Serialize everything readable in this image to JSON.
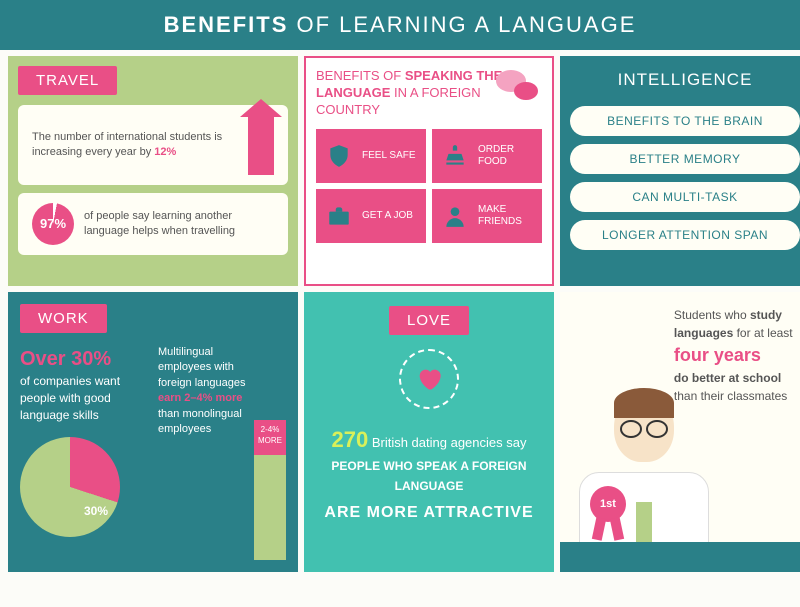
{
  "header": {
    "prefix": "BENEFITS",
    "suffix": " OF LEARNING A LANGUAGE"
  },
  "colors": {
    "pink": "#e94f86",
    "teal": "#2a8088",
    "green": "#b5d088",
    "mint": "#42c1b0",
    "cream": "#fffef5",
    "lime": "#d9f05a"
  },
  "travel": {
    "tag": "TRAVEL",
    "card1": {
      "text": "The number of international students is increasing every year by ",
      "stat": "12%"
    },
    "card2": {
      "percent": "97%",
      "text": "of people say learning another language helps when travelling"
    }
  },
  "benefits": {
    "title_pre": "BENEFITS OF ",
    "title_bold": "SPEAKING THE LANGUAGE",
    "title_post": " IN A FOREIGN COUNTRY",
    "items": [
      {
        "icon": "shield",
        "label": "FEEL SAFE"
      },
      {
        "icon": "food",
        "label": "ORDER FOOD"
      },
      {
        "icon": "briefcase",
        "label": "GET A JOB"
      },
      {
        "icon": "person",
        "label": "MAKE FRIENDS"
      }
    ]
  },
  "intel": {
    "tag": "INTELLIGENCE",
    "pills": [
      "BENEFITS TO THE BRAIN",
      "BETTER MEMORY",
      "CAN MULTI-TASK",
      "LONGER ATTENTION SPAN"
    ]
  },
  "work": {
    "tag": "WORK",
    "left": {
      "big": "Over 30%",
      "text": "of companies want people with good language skills",
      "pie_label": "30%",
      "pie_pct": 30
    },
    "right": {
      "text1": "Multilingual employees with foreign languages ",
      "stat": "earn 2–4% more",
      "text2": " than monolingual employees",
      "bar_label": "2-4% MORE"
    }
  },
  "love": {
    "tag": "LOVE",
    "n": "270",
    "line1": " British dating agencies say",
    "line2": "PEOPLE WHO SPEAK A FOREIGN LANGUAGE",
    "big": "ARE MORE ATTRACTIVE"
  },
  "student": {
    "t1": "Students who ",
    "b1": "study languages",
    "t2": " for at least",
    "fy": "four years",
    "t3": "do better at school",
    "t4": " than their classmates",
    "ribbon": "1st"
  }
}
